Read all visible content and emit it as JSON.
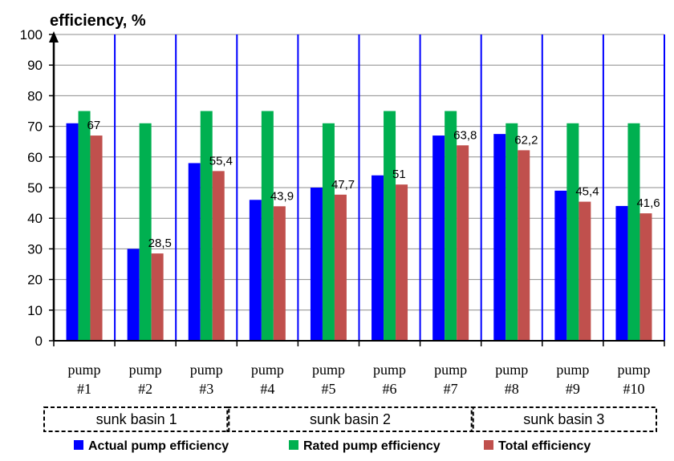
{
  "chart_data": {
    "type": "bar",
    "ylabel": "efficiency, %",
    "ylim": [
      0,
      100
    ],
    "yticks": [
      0,
      10,
      20,
      30,
      40,
      50,
      60,
      70,
      80,
      90,
      100
    ],
    "grid": "horizontal",
    "categories": [
      [
        "pump",
        "#1"
      ],
      [
        "pump",
        "#2"
      ],
      [
        "pump",
        "#3"
      ],
      [
        "pump",
        "#4"
      ],
      [
        "pump",
        "#5"
      ],
      [
        "pump",
        "#6"
      ],
      [
        "pump",
        "#7"
      ],
      [
        "pump",
        "#8"
      ],
      [
        "pump",
        "#9"
      ],
      [
        "pump",
        "#10"
      ]
    ],
    "groups": [
      {
        "label": "sunk basin 1",
        "categories": 3
      },
      {
        "label": "sunk basin 2",
        "categories": 4
      },
      {
        "label": "sunk basin 3",
        "categories": 3
      }
    ],
    "series": [
      {
        "name": "Actual pump efficiency",
        "color": "#0000ff",
        "values": [
          71,
          30,
          58,
          46,
          50,
          54,
          67,
          67.5,
          49,
          44
        ]
      },
      {
        "name": "Rated pump efficiency",
        "color": "#00b050",
        "values": [
          75,
          71,
          75,
          75,
          71,
          75,
          75,
          71,
          71,
          71
        ]
      },
      {
        "name": "Total efficiency",
        "color": "#c0504d",
        "values": [
          67,
          28.5,
          55.4,
          43.9,
          47.7,
          51,
          63.8,
          62.2,
          45.4,
          41.6
        ]
      }
    ],
    "data_labels": {
      "series": "Total efficiency",
      "texts": [
        "67",
        "28,5",
        "55,4",
        "43,9",
        "47,7",
        "51",
        "63,8",
        "62,2",
        "45,4",
        "41,6"
      ]
    },
    "separator_color": "#0000ff",
    "legend_position": "bottom"
  }
}
